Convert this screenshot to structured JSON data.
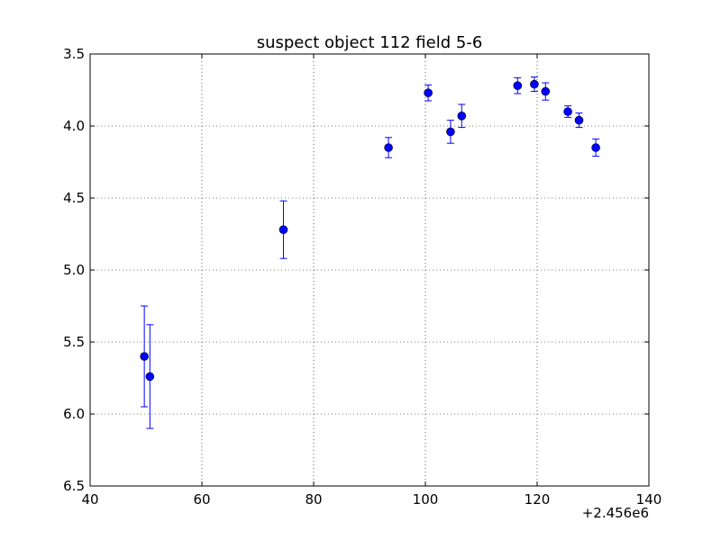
{
  "chart_data": {
    "type": "scatter",
    "title": "suspect object 112 field 5-6",
    "xlabel": "",
    "ylabel": "",
    "x_offset_label": "+2.456e6",
    "xlim": [
      40,
      140
    ],
    "ylim": [
      3.5,
      6.5
    ],
    "y_inverted": true,
    "grid": true,
    "x_ticks": [
      40,
      60,
      80,
      100,
      120,
      140
    ],
    "x_tick_labels": [
      "40",
      "60",
      "80",
      "100",
      "120",
      "140"
    ],
    "y_ticks": [
      3.5,
      4.0,
      4.5,
      5.0,
      5.5,
      6.0,
      6.5
    ],
    "y_tick_labels": [
      "3.5",
      "4.0",
      "4.5",
      "5.0",
      "5.5",
      "6.0",
      "6.5"
    ],
    "marker_color": "#0000ff",
    "series": [
      {
        "x": [
          49.7,
          50.7,
          74.6,
          93.4,
          100.5,
          104.5,
          106.5,
          116.5,
          119.5,
          121.5,
          125.5,
          127.5,
          130.5
        ],
        "y": [
          5.6,
          5.74,
          4.72,
          4.15,
          3.77,
          4.04,
          3.93,
          3.72,
          3.71,
          3.76,
          3.9,
          3.96,
          4.15
        ],
        "yerr": [
          0.35,
          0.36,
          0.2,
          0.07,
          0.055,
          0.08,
          0.08,
          0.055,
          0.05,
          0.06,
          0.04,
          0.05,
          0.06
        ]
      }
    ]
  }
}
